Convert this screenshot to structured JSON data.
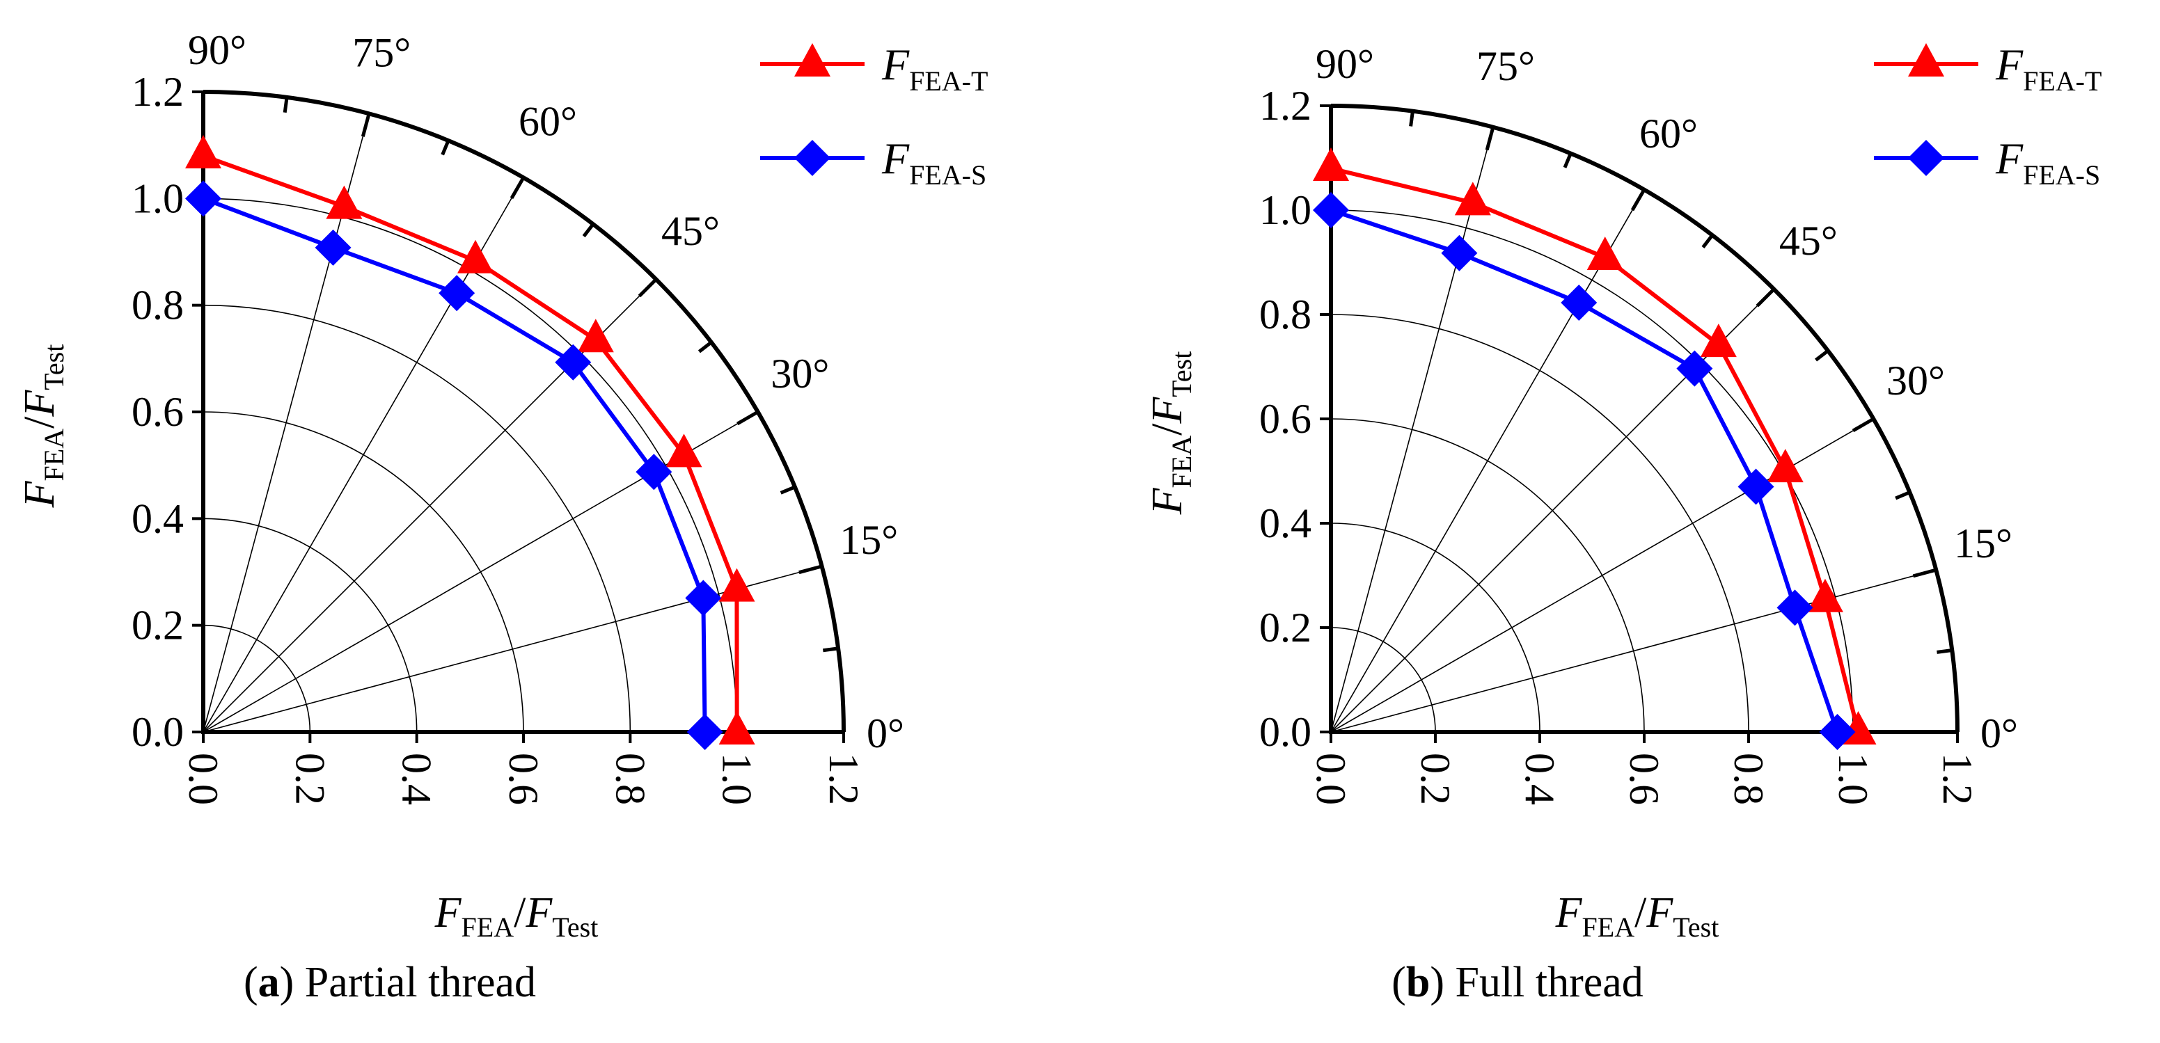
{
  "chart_data": [
    {
      "type": "polar-quadrant",
      "panel_label": "a",
      "caption": "Partial thread",
      "xlabel": {
        "main": "F",
        "sub1": "FEA",
        "slash": "/",
        "main2": "F",
        "sub2": "Test"
      },
      "ylabel": {
        "main": "F",
        "sub1": "FEA",
        "slash": "/",
        "main2": "F",
        "sub2": "Test"
      },
      "xlim": [
        0,
        1.2
      ],
      "ylim": [
        0,
        1.2
      ],
      "ticks": [
        "0.0",
        "0.2",
        "0.4",
        "0.6",
        "0.8",
        "1.0",
        "1.2"
      ],
      "angle_ticks": [
        "0°",
        "15°",
        "30°",
        "45°",
        "60°",
        "75°",
        "90°"
      ],
      "angles": [
        0,
        15,
        30,
        45,
        60,
        75,
        90
      ],
      "series": [
        {
          "name": "F_FEA-T",
          "label_main": "F",
          "label_sub": "FEA-T",
          "color": "#ff0000",
          "marker": "triangle",
          "radii": [
            1.0,
            1.035,
            1.04,
            1.04,
            1.02,
            1.02,
            1.08
          ]
        },
        {
          "name": "F_FEA-S",
          "label_main": "F",
          "label_sub": "FEA-S",
          "color": "#0000ff",
          "marker": "diamond",
          "radii": [
            0.94,
            0.97,
            0.975,
            0.98,
            0.95,
            0.94,
            1.0
          ]
        }
      ]
    },
    {
      "type": "polar-quadrant",
      "panel_label": "b",
      "caption": "Full thread",
      "xlabel": {
        "main": "F",
        "sub1": "FEA",
        "slash": "/",
        "main2": "F",
        "sub2": "Test"
      },
      "ylabel": {
        "main": "F",
        "sub1": "FEA",
        "slash": "/",
        "main2": "F",
        "sub2": "Test"
      },
      "xlim": [
        0,
        1.2
      ],
      "ylim": [
        0,
        1.2
      ],
      "ticks": [
        "0.0",
        "0.2",
        "0.4",
        "0.6",
        "0.8",
        "1.0",
        "1.2"
      ],
      "angle_ticks": [
        "0°",
        "15°",
        "30°",
        "45°",
        "60°",
        "75°",
        "90°"
      ],
      "angles": [
        0,
        15,
        30,
        45,
        60,
        75,
        90
      ],
      "series": [
        {
          "name": "F_FEA-T",
          "label_main": "F",
          "label_sub": "FEA-T",
          "color": "#ff0000",
          "marker": "triangle",
          "radii": [
            1.01,
            0.98,
            1.005,
            1.05,
            1.05,
            1.05,
            1.08
          ]
        },
        {
          "name": "F_FEA-S",
          "label_main": "F",
          "label_sub": "FEA-S",
          "color": "#0000ff",
          "marker": "diamond",
          "radii": [
            0.97,
            0.92,
            0.94,
            0.985,
            0.95,
            0.95,
            1.0
          ]
        }
      ]
    }
  ]
}
